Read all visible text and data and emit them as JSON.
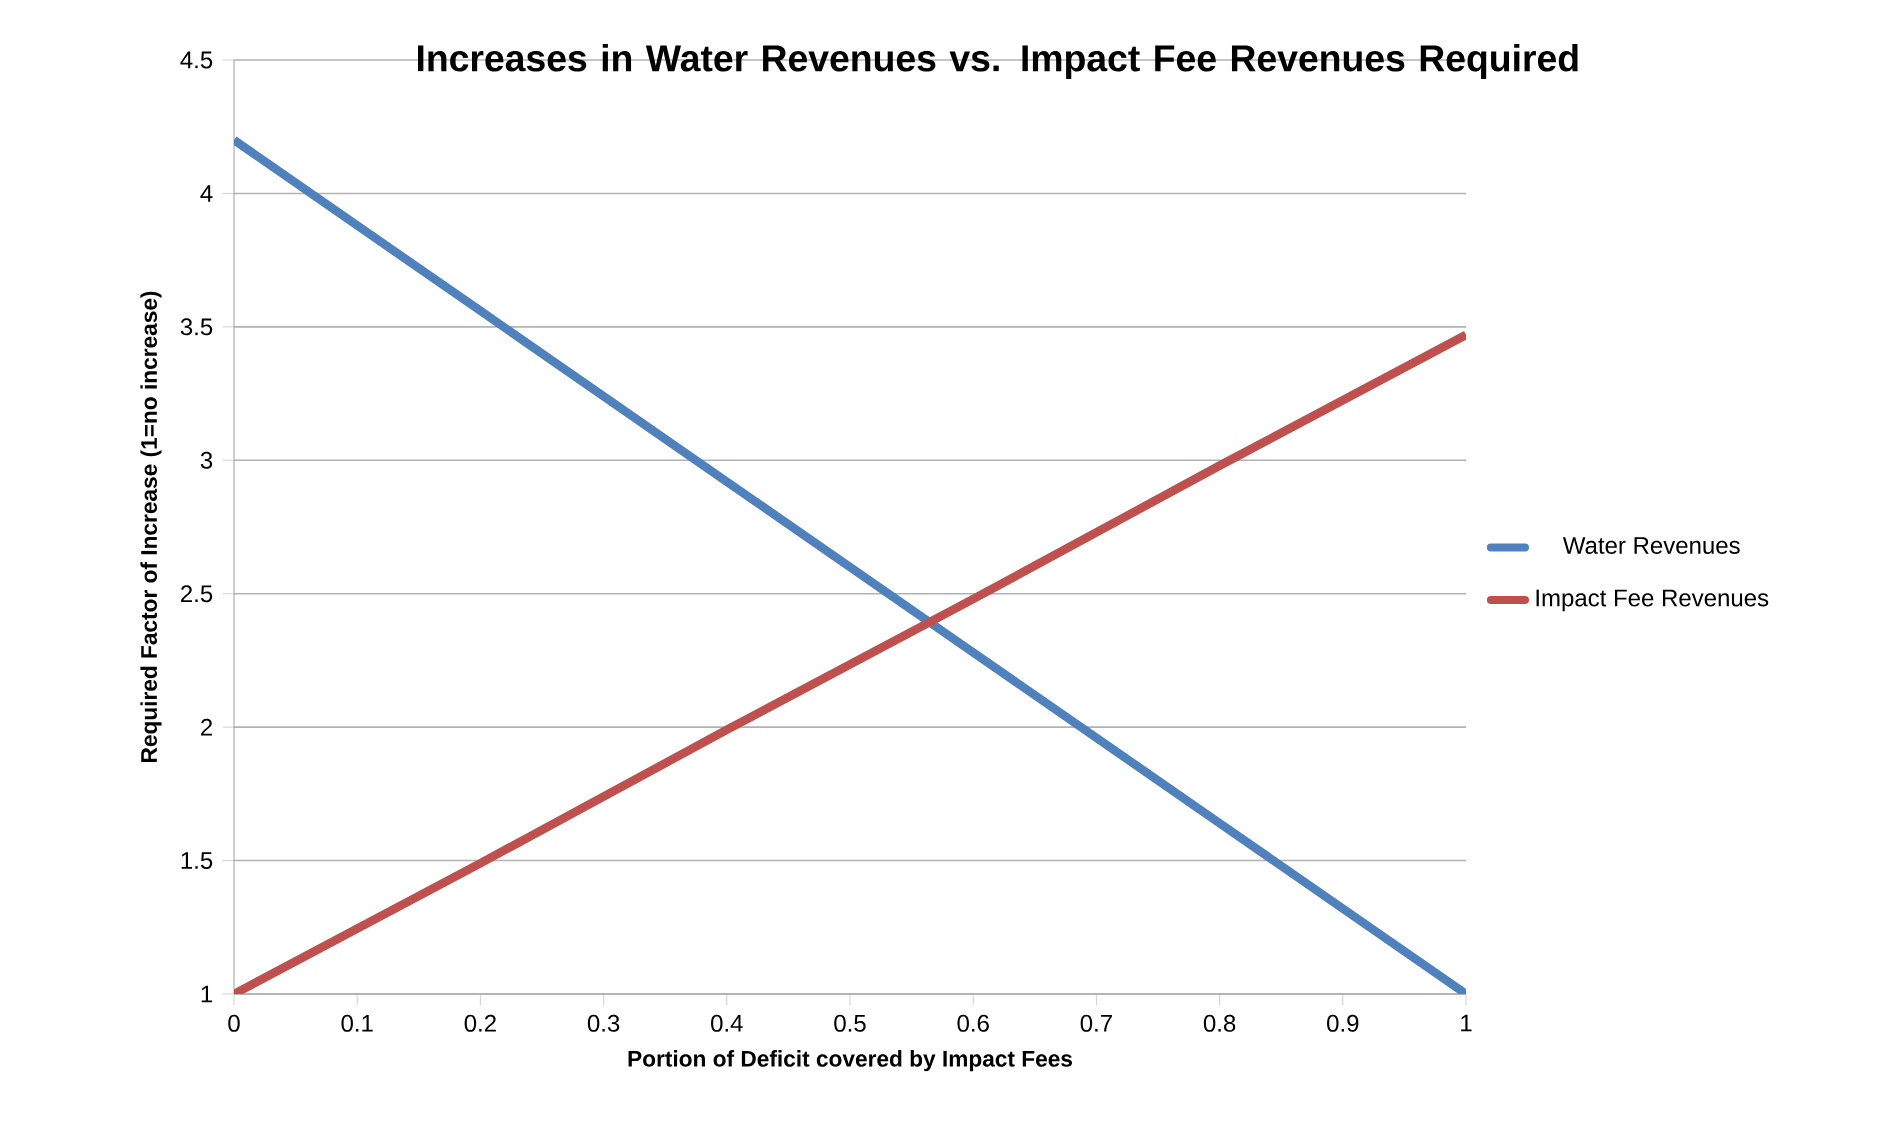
{
  "chart_data": {
    "type": "line",
    "title": "Increases in Water Revenues vs. Impact Fee Revenues Required",
    "xlabel": "Portion of Deficit covered by Impact Fees",
    "ylabel": "Required Factor of Increase (1=no increase)",
    "x": [
      0,
      0.2,
      0.4,
      0.6,
      0.8,
      1
    ],
    "series": [
      {
        "name": "Water Revenues",
        "color": "#4f81bd",
        "values": [
          4.2,
          3.56,
          2.92,
          2.28,
          1.64,
          1.0
        ]
      },
      {
        "name": "Impact Fee Revenues",
        "color": "#c0504d",
        "values": [
          1.0,
          1.49,
          1.99,
          2.48,
          2.98,
          3.47
        ]
      }
    ],
    "xlim": [
      0,
      1
    ],
    "xticks": [
      0,
      0.1,
      0.2,
      0.3,
      0.4,
      0.5,
      0.6,
      0.7,
      0.8,
      0.9,
      1
    ],
    "ylim": [
      1,
      4.5
    ],
    "yticks": [
      1,
      1.5,
      2,
      2.5,
      3,
      3.5,
      4,
      4.5
    ],
    "grid": "y",
    "legend": "right",
    "marker": "none",
    "line_style": "solid"
  }
}
